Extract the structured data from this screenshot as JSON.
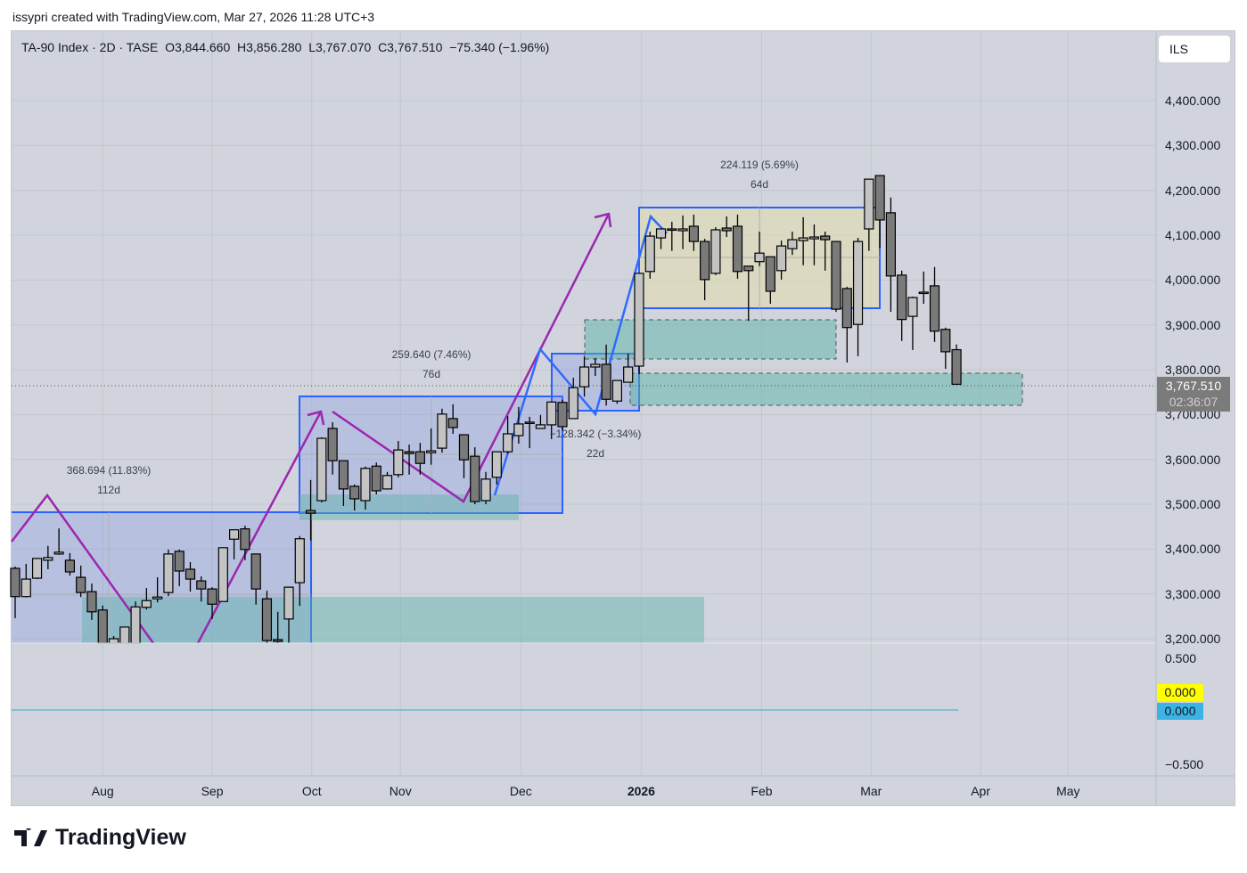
{
  "attribution": "issypri created with TradingView.com, Mar 27, 2026 11:28 UTC+3",
  "legend": {
    "symbol": "TA-90 Index · 2D · TASE",
    "open": "O3,844.660",
    "high": "H3,856.280",
    "low": "L3,767.070",
    "close": "C3,767.510",
    "change": "−75.340 (−1.96%)"
  },
  "currency": "ILS",
  "last_price": {
    "value": "3,767.510",
    "countdown": "02:36:07"
  },
  "indicator": {
    "labels": [
      "0.500",
      "−0.500"
    ],
    "value_yellow": "0.000",
    "value_blue": "0.000",
    "colors": {
      "yellow": "#ffff00",
      "blue": "#3bb3e4"
    }
  },
  "measures": [
    {
      "change": "368.694 (11.83%)",
      "duration": "112d"
    },
    {
      "change": "259.640 (7.46%)",
      "duration": "76d"
    },
    {
      "change": "−128.342 (−3.34%)",
      "duration": "22d"
    },
    {
      "change": "224.119 (5.69%)",
      "duration": "64d"
    }
  ],
  "logo": "TradingView",
  "chart_data": {
    "type": "candlestick",
    "title": "TA-90 Index · 2D · TASE",
    "ylim": [
      3200,
      4450
    ],
    "yticks": [
      "3,200.000",
      "3,300.000",
      "3,400.000",
      "3,500.000",
      "3,600.000",
      "3,700.000",
      "3,800.000",
      "3,900.000",
      "4,000.000",
      "4,100.000",
      "4,200.000",
      "4,300.000",
      "4,400.000"
    ],
    "ytick_values": [
      3200,
      3300,
      3400,
      3500,
      3600,
      3700,
      3800,
      3900,
      4000,
      4100,
      4200,
      4300,
      4400
    ],
    "xticks": [
      "Aug",
      "Sep",
      "Oct",
      "Nov",
      "Dec",
      "2026",
      "Feb",
      "Mar",
      "Apr",
      "May"
    ],
    "xtick_bar_index": [
      8,
      18,
      27.1,
      35.2,
      46.2,
      57.2,
      68.2,
      78.2,
      88.2,
      96.2
    ],
    "colors": {
      "up": "#c3c3c3",
      "down": "#7a7a7a",
      "outline": "#000000",
      "box": "#2962ff",
      "zigzag": "#9c27b0"
    },
    "ohlc": [
      [
        3357,
        3361,
        3246,
        3294
      ],
      [
        3294,
        3367,
        3292,
        3333
      ],
      [
        3335,
        3380,
        3333,
        3379
      ],
      [
        3375,
        3407,
        3355,
        3381
      ],
      [
        3389,
        3446,
        3387,
        3393
      ],
      [
        3375,
        3391,
        3341,
        3349
      ],
      [
        3337,
        3363,
        3293,
        3303
      ],
      [
        3305,
        3323,
        3242,
        3260
      ],
      [
        3264,
        3274,
        3180,
        3190
      ],
      [
        3185,
        3206,
        3180,
        3200
      ],
      [
        3180,
        3226,
        3175,
        3226
      ],
      [
        3180,
        3283,
        3170,
        3271
      ],
      [
        3270,
        3313,
        3265,
        3285
      ],
      [
        3289,
        3337,
        3281,
        3293
      ],
      [
        3303,
        3399,
        3295,
        3389
      ],
      [
        3395,
        3399,
        3317,
        3351
      ],
      [
        3355,
        3371,
        3305,
        3333
      ],
      [
        3329,
        3339,
        3283,
        3311
      ],
      [
        3311,
        3315,
        3244,
        3277
      ],
      [
        3283,
        3403,
        3283,
        3403
      ],
      [
        3422,
        3443,
        3377,
        3443
      ],
      [
        3445,
        3452,
        3375,
        3399
      ],
      [
        3389,
        3389,
        3276,
        3311
      ],
      [
        3289,
        3307,
        3190,
        3196
      ],
      [
        3198,
        3260,
        3185,
        3194
      ],
      [
        3244,
        3315,
        3180,
        3315
      ],
      [
        3325,
        3429,
        3273,
        3423
      ],
      [
        3486,
        3554,
        3419,
        3480
      ],
      [
        3508,
        3649,
        3504,
        3647
      ],
      [
        3669,
        3683,
        3566,
        3597
      ],
      [
        3597,
        3597,
        3496,
        3534
      ],
      [
        3540,
        3544,
        3486,
        3512
      ],
      [
        3508,
        3584,
        3488,
        3580
      ],
      [
        3585,
        3593,
        3522,
        3530
      ],
      [
        3534,
        3572,
        3534,
        3564
      ],
      [
        3566,
        3641,
        3560,
        3621
      ],
      [
        3617,
        3633,
        3566,
        3613
      ],
      [
        3617,
        3637,
        3566,
        3591
      ],
      [
        3615,
        3669,
        3588,
        3619
      ],
      [
        3625,
        3713,
        3615,
        3701
      ],
      [
        3691,
        3723,
        3657,
        3671
      ],
      [
        3655,
        3655,
        3558,
        3599
      ],
      [
        3607,
        3627,
        3500,
        3506
      ],
      [
        3508,
        3572,
        3500,
        3556
      ],
      [
        3560,
        3617,
        3544,
        3617
      ],
      [
        3617,
        3697,
        3613,
        3657
      ],
      [
        3653,
        3717,
        3635,
        3679
      ],
      [
        3681,
        3695,
        3625,
        3683
      ],
      [
        3669,
        3699,
        3669,
        3677
      ],
      [
        3677,
        3728,
        3645,
        3728
      ],
      [
        3727,
        3733,
        3665,
        3673
      ],
      [
        3691,
        3782,
        3691,
        3760
      ],
      [
        3762,
        3830,
        3740,
        3806
      ],
      [
        3806,
        3826,
        3786,
        3812
      ],
      [
        3812,
        3856,
        3720,
        3734
      ],
      [
        3730,
        3776,
        3724,
        3776
      ],
      [
        3772,
        3836,
        3772,
        3806
      ],
      [
        3808,
        4015,
        3790,
        4015
      ],
      [
        4019,
        4108,
        4003,
        4098
      ],
      [
        4094,
        4114,
        4069,
        4114
      ],
      [
        4112,
        4130,
        4065,
        4114
      ],
      [
        4110,
        4144,
        4069,
        4114
      ],
      [
        4120,
        4146,
        4065,
        4086
      ],
      [
        4086,
        4092,
        3955,
        4001
      ],
      [
        4015,
        4118,
        4011,
        4112
      ],
      [
        4116,
        4142,
        4096,
        4110
      ],
      [
        4120,
        4146,
        4003,
        4019
      ],
      [
        4031,
        4031,
        3909,
        4021
      ],
      [
        4041,
        4108,
        4031,
        4060
      ],
      [
        4052,
        4052,
        3947,
        3975
      ],
      [
        4021,
        4088,
        4001,
        4076
      ],
      [
        4070,
        4108,
        4056,
        4090
      ],
      [
        4088,
        4140,
        4033,
        4094
      ],
      [
        4092,
        4124,
        4033,
        4096
      ],
      [
        4098,
        4108,
        4021,
        4090
      ],
      [
        4086,
        4086,
        3929,
        3935
      ],
      [
        3981,
        3985,
        3816,
        3894
      ],
      [
        3901,
        4094,
        3830,
        4086
      ],
      [
        4114,
        4225,
        4065,
        4225
      ],
      [
        4233,
        4233,
        4071,
        4134
      ],
      [
        4150,
        4184,
        3929,
        4009
      ],
      [
        4011,
        4021,
        3864,
        3912
      ],
      [
        3919,
        3963,
        3844,
        3961
      ],
      [
        3971,
        4019,
        3947,
        3973
      ],
      [
        3987,
        4029,
        3862,
        3886
      ],
      [
        3890,
        3894,
        3802,
        3840
      ],
      [
        3844.66,
        3856.28,
        3767.07,
        3767.51
      ]
    ]
  }
}
